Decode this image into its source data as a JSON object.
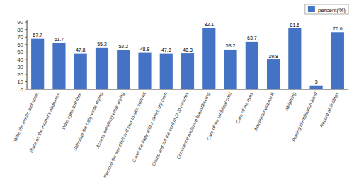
{
  "chart_data": {
    "type": "bar",
    "categories": [
      "Wipe the mouth and nose.",
      "Place on the mother's abdomen.",
      "Wipe eyes and face",
      "Stimulate the baby while drying",
      "Assess breathing while drying",
      "Remove the wet cloth and skin-to-skin contact",
      "Cover the baby with a clean, dry cloth",
      "Clamp and cut the cord in (2-3) minutes",
      "Commence exclusive breastfeeding",
      "Care of the umbilical cord",
      "Care of the eyes",
      "Administer vitamin K",
      "Weighting",
      "Placing identification band",
      "Record all findings"
    ],
    "series": [
      {
        "name": "percent(%)",
        "color": "#4472C4",
        "values": [
          67.7,
          61.7,
          47.8,
          55.2,
          52.2,
          48.8,
          47.8,
          48.3,
          82.1,
          53.2,
          63.7,
          39.8,
          81.6,
          5,
          76.6
        ]
      }
    ],
    "ylim": [
      0,
      93
    ],
    "yticks": [
      0,
      10,
      20,
      30,
      40,
      50,
      60,
      70,
      80,
      90
    ],
    "grid": false,
    "legend": "upper right",
    "data_labels": true
  }
}
